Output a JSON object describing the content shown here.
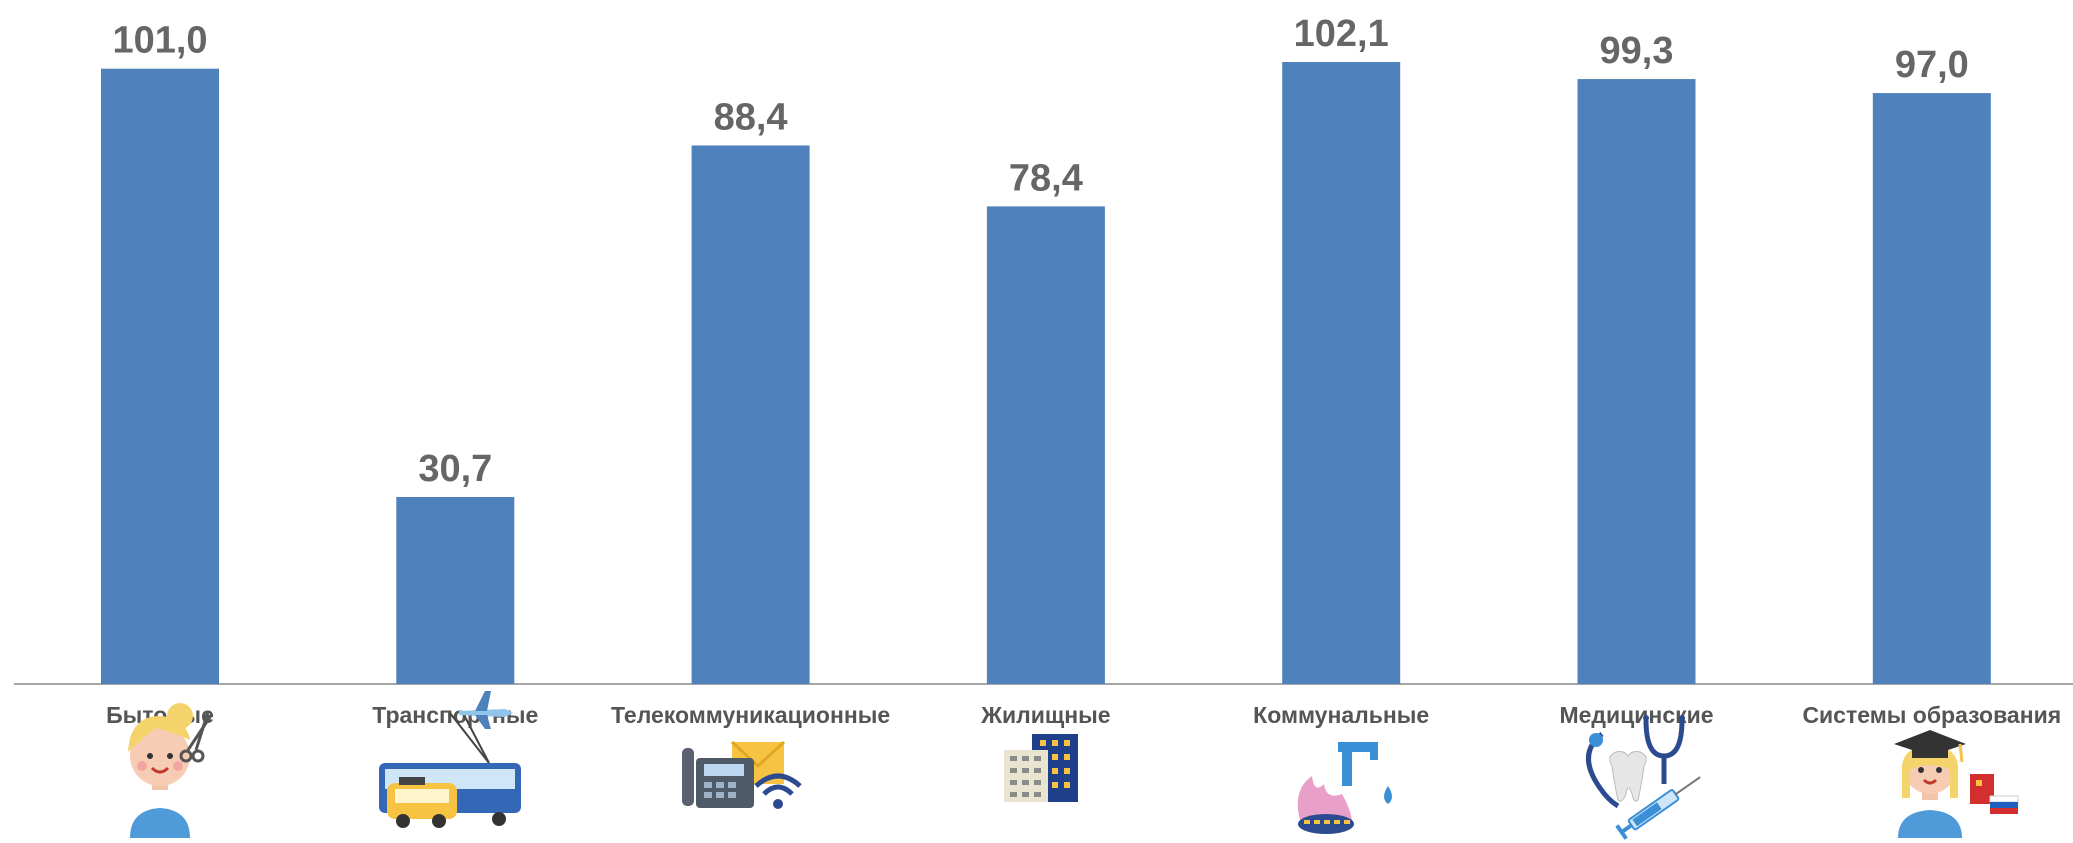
{
  "chart_data": {
    "type": "bar",
    "categories": [
      "Бытовые",
      "Транспортные",
      "Телекоммуникационные",
      "Жилищные",
      "Коммунальные",
      "Медицинские",
      "Системы образования"
    ],
    "values": [
      101.0,
      30.7,
      88.4,
      78.4,
      102.1,
      99.3,
      97.0
    ],
    "value_labels": [
      "101,0",
      "30,7",
      "88,4",
      "78,4",
      "102,1",
      "99,3",
      "97,0"
    ],
    "icons": [
      "hairdresser-icon",
      "transport-icon",
      "telecom-icon",
      "housing-building-icon",
      "utilities-icon",
      "medical-icon",
      "education-icon"
    ],
    "ylim": [
      0,
      102.1
    ],
    "grid": false,
    "legend": "none",
    "bar_color": "#4f81bd",
    "label_color": "#666666"
  }
}
